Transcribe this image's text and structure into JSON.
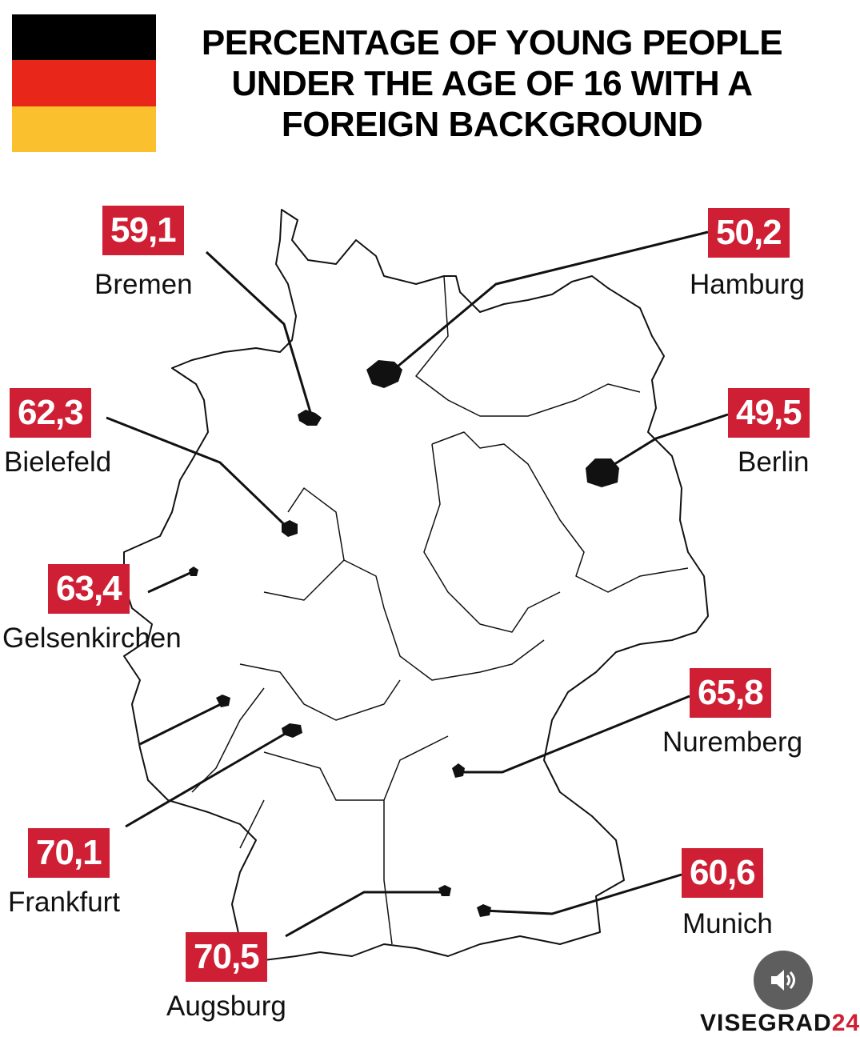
{
  "title": [
    "PERCENTAGE OF YOUNG PEOPLE",
    "UNDER THE AGE OF 16 WITH A",
    "FOREIGN BACKGROUND"
  ],
  "flag_colors": [
    "#000000",
    "#e8261a",
    "#fbc02d"
  ],
  "accent_color": "#cf1f34",
  "cities": [
    {
      "name": "Bremen",
      "value": "59,1"
    },
    {
      "name": "Hamburg",
      "value": "50,2"
    },
    {
      "name": "Bielefeld",
      "value": "62,3"
    },
    {
      "name": "Berlin",
      "value": "49,5"
    },
    {
      "name": "Gelsenkirchen",
      "value": "63,4"
    },
    {
      "name": "Nuremberg",
      "value": "65,8"
    },
    {
      "name": "Frankfurt",
      "value": "70,1"
    },
    {
      "name": "Munich",
      "value": "60,6"
    },
    {
      "name": "Augsburg",
      "value": "70,5"
    }
  ],
  "watermark": {
    "main": "VISEGRAD",
    "suffix": "24"
  },
  "sound_button_icon": "speaker-icon"
}
